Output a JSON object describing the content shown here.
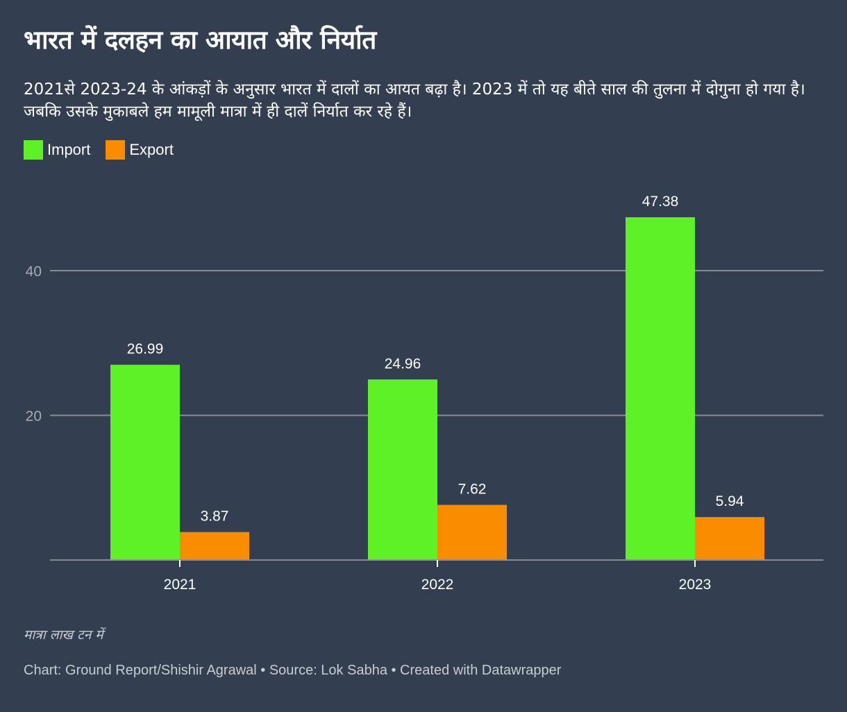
{
  "header": {
    "title": "भारत में दलहन का आयात और निर्यात",
    "description": "2021से 2023-24 के आंकड़ों के अनुसार भारत में दालों का आयत बढ़ा है। 2023 में तो यह बीते साल की तुलना में दोगुना हो गया है। जबकि उसके मुकाबले हम मामूली मात्रा में ही दालें निर्यात कर रहे हैं।"
  },
  "legend": [
    {
      "label": "Import",
      "color": "#5ef226"
    },
    {
      "label": "Export",
      "color": "#fa8c00"
    }
  ],
  "notes": "मात्रा लाख टन में",
  "footer": "Chart: Ground Report/Shishir Agrawal • Source: Lok Sabha • Created with Datawrapper",
  "chart_data": {
    "type": "bar",
    "title": "भारत में दलहन का आयात और निर्यात",
    "xlabel": "",
    "ylabel": "मात्रा लाख टन में",
    "categories": [
      "2021",
      "2022",
      "2023"
    ],
    "series": [
      {
        "name": "Import",
        "color": "#5ef226",
        "values": [
          26.99,
          24.96,
          47.38
        ]
      },
      {
        "name": "Export",
        "color": "#fa8c00",
        "values": [
          3.87,
          7.62,
          5.94
        ]
      }
    ],
    "yticks": [
      20,
      40
    ],
    "ylim": [
      0,
      50
    ],
    "grid": true,
    "data_labels": [
      "26.99",
      "24.96",
      "47.38",
      "3.87",
      "7.62",
      "5.94"
    ],
    "legend_position": "top-left"
  }
}
